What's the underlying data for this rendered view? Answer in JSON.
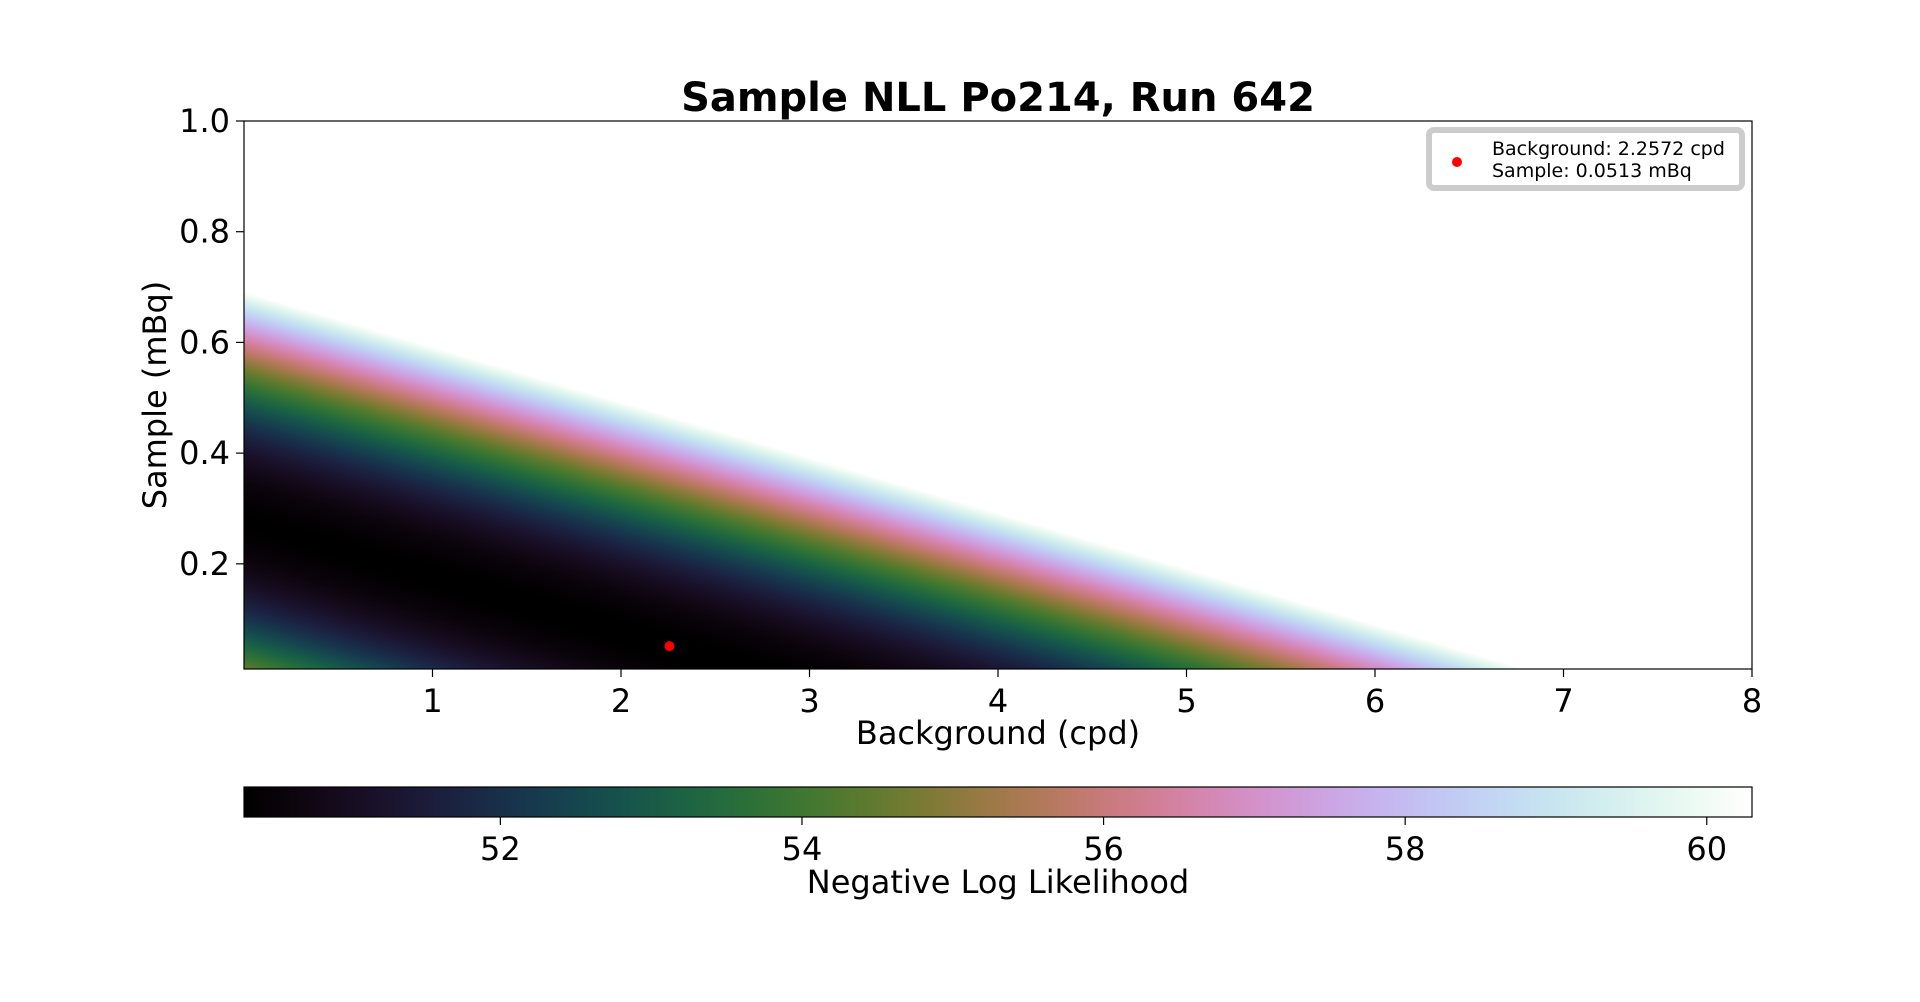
{
  "chart_data": {
    "type": "heatmap",
    "title": "Sample NLL Po214, Run 642",
    "xlabel": "Background (cpd)",
    "ylabel": "Sample (mBq)",
    "xlim": [
      0.0,
      8.0
    ],
    "ylim": [
      0.01,
      1.0
    ],
    "xticks": [
      1,
      2,
      3,
      4,
      5,
      6,
      7,
      8
    ],
    "yticks": [
      0.2,
      0.4,
      0.6,
      0.8,
      1.0
    ],
    "xtick_labels": [
      "1",
      "2",
      "3",
      "4",
      "5",
      "6",
      "7",
      "8"
    ],
    "ytick_labels": [
      "0.2",
      "0.4",
      "0.6",
      "0.8",
      "1.0"
    ],
    "grid": false,
    "colormap": "cubehelix",
    "colorbar": {
      "label": "Negative Log Likelihood",
      "range": [
        50.3,
        60.3
      ],
      "ticks": [
        52,
        54,
        56,
        58,
        60
      ],
      "tick_labels": [
        "52",
        "54",
        "56",
        "58",
        "60"
      ],
      "orientation": "horizontal",
      "placement": "bottom"
    },
    "best_fit": {
      "background": 2.2572,
      "sample": 0.0513,
      "color": "#ff0000"
    },
    "legend": {
      "placement": "top-right",
      "entries": [
        "Background: 2.2572 cpd",
        "Sample: 0.0513 mBq"
      ]
    }
  }
}
